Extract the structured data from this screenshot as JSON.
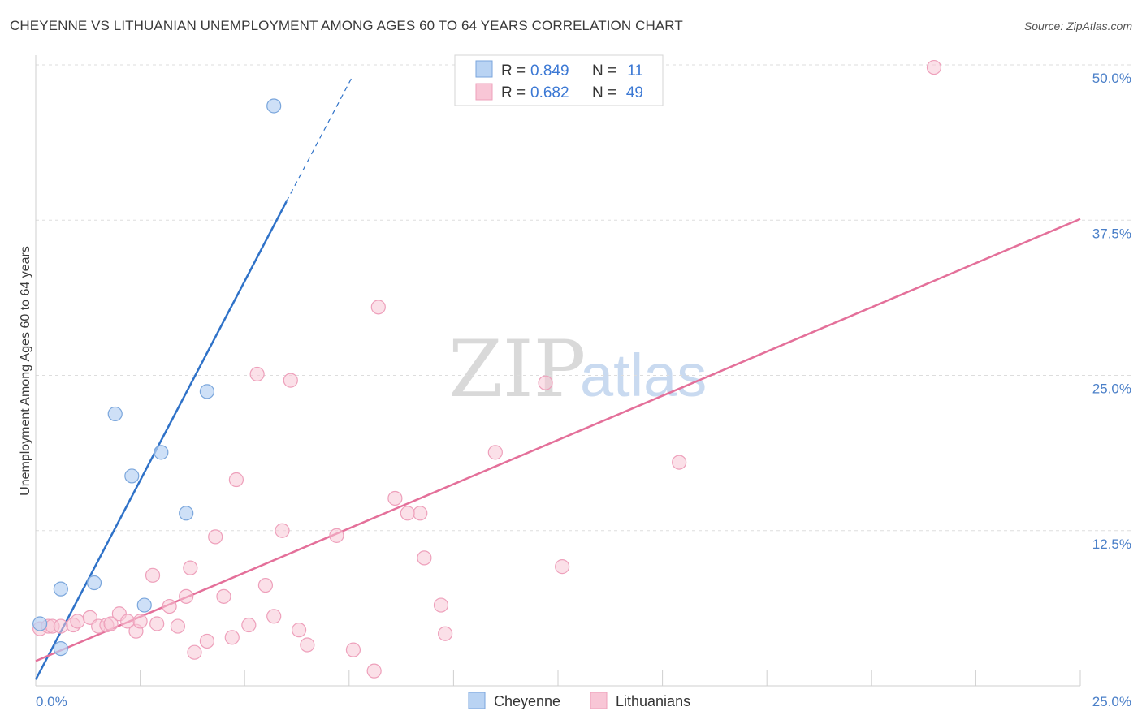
{
  "header": {
    "title": "CHEYENNE VS LITHUANIAN UNEMPLOYMENT AMONG AGES 60 TO 64 YEARS CORRELATION CHART",
    "source": "Source: ZipAtlas.com"
  },
  "watermark": {
    "zip": "ZIP",
    "atlas": "atlas"
  },
  "colors": {
    "cheyenne_fill": "#b9d3f3",
    "cheyenne_stroke": "#7aa6dc",
    "cheyenne_line": "#2f72c8",
    "lithuanian_fill": "#f8c6d6",
    "lithuanian_stroke": "#eea0bb",
    "lithuanian_line": "#e4709a",
    "grid": "#dddddd",
    "tick_text": "#4a7fc8"
  },
  "legend": {
    "rows": [
      {
        "r_label": "R =",
        "r_value": "0.849",
        "n_label": "N =",
        "n_value": "11"
      },
      {
        "r_label": "R =",
        "r_value": "0.682",
        "n_label": "N =",
        "n_value": "49"
      }
    ]
  },
  "bottom_legend": [
    "Cheyenne",
    "Lithuanians"
  ],
  "chart_data": {
    "type": "scatter",
    "title": "CHEYENNE VS LITHUANIAN UNEMPLOYMENT AMONG AGES 60 TO 64 YEARS CORRELATION CHART",
    "xlabel": "",
    "ylabel": "Unemployment Among Ages 60 to 64 years",
    "xlim": [
      0,
      25
    ],
    "ylim": [
      0,
      50
    ],
    "x_tick_labels": [
      "0.0%",
      "25.0%"
    ],
    "y_ticks": [
      12.5,
      25.0,
      37.5,
      50.0
    ],
    "y_tick_labels": [
      "12.5%",
      "25.0%",
      "37.5%",
      "50.0%"
    ],
    "grid": true,
    "series": [
      {
        "name": "Cheyenne",
        "R": 0.849,
        "N": 11,
        "points": [
          [
            0.1,
            5.0
          ],
          [
            0.6,
            3.0
          ],
          [
            0.6,
            7.8
          ],
          [
            1.4,
            8.3
          ],
          [
            1.9,
            21.9
          ],
          [
            2.3,
            16.9
          ],
          [
            2.6,
            6.5
          ],
          [
            3.0,
            18.8
          ],
          [
            3.6,
            13.9
          ],
          [
            4.1,
            23.7
          ],
          [
            5.7,
            46.7
          ]
        ],
        "trend": {
          "x_start": 0.0,
          "y_start": 0.5,
          "x_end": 6.0,
          "y_end": 39.0,
          "dash_x_end": 7.6,
          "dash_y_end": 49.2
        }
      },
      {
        "name": "Lithuanians",
        "R": 0.682,
        "N": 49,
        "points": [
          [
            0.1,
            4.6
          ],
          [
            0.3,
            4.8
          ],
          [
            0.4,
            4.8
          ],
          [
            0.6,
            4.8
          ],
          [
            0.9,
            4.9
          ],
          [
            1.0,
            5.2
          ],
          [
            1.3,
            5.5
          ],
          [
            1.5,
            4.8
          ],
          [
            1.7,
            4.9
          ],
          [
            1.8,
            5.0
          ],
          [
            2.0,
            5.8
          ],
          [
            2.2,
            5.2
          ],
          [
            2.4,
            4.4
          ],
          [
            2.5,
            5.2
          ],
          [
            2.8,
            8.9
          ],
          [
            2.9,
            5.0
          ],
          [
            3.2,
            6.4
          ],
          [
            3.4,
            4.8
          ],
          [
            3.6,
            7.2
          ],
          [
            3.7,
            9.5
          ],
          [
            3.8,
            2.7
          ],
          [
            4.1,
            3.6
          ],
          [
            4.3,
            12.0
          ],
          [
            4.5,
            7.2
          ],
          [
            4.7,
            3.9
          ],
          [
            4.8,
            16.6
          ],
          [
            5.1,
            4.9
          ],
          [
            5.3,
            25.1
          ],
          [
            5.5,
            8.1
          ],
          [
            5.7,
            5.6
          ],
          [
            5.9,
            12.5
          ],
          [
            6.1,
            24.6
          ],
          [
            6.3,
            4.5
          ],
          [
            6.5,
            3.3
          ],
          [
            7.2,
            12.1
          ],
          [
            7.6,
            2.9
          ],
          [
            8.1,
            1.2
          ],
          [
            8.2,
            30.5
          ],
          [
            8.6,
            15.1
          ],
          [
            8.9,
            13.9
          ],
          [
            9.2,
            13.9
          ],
          [
            9.3,
            10.3
          ],
          [
            9.7,
            6.5
          ],
          [
            9.8,
            4.2
          ],
          [
            11.0,
            18.8
          ],
          [
            12.2,
            24.4
          ],
          [
            12.6,
            9.6
          ],
          [
            15.4,
            18.0
          ],
          [
            21.5,
            49.8
          ]
        ],
        "trend": {
          "x_start": 0.0,
          "y_start": 2.0,
          "x_end": 25.0,
          "y_end": 37.6
        }
      }
    ]
  }
}
